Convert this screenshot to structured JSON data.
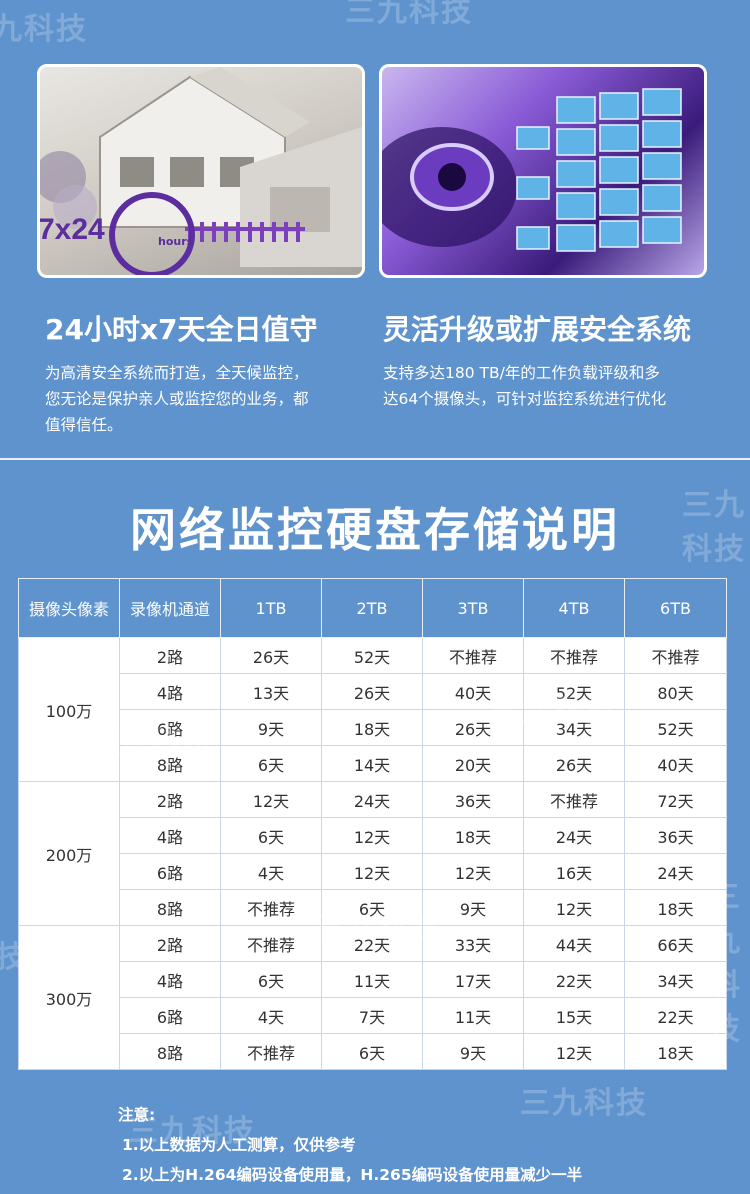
{
  "features": [
    {
      "title": "24小时x7天全日值守",
      "desc_lines": [
        "为高清安全系统而打造，全天候监控，",
        "您无论是保护亲人或监控您的业务，都",
        "值得信任。"
      ],
      "badge_text": "7x24",
      "badge_sub": "hours"
    },
    {
      "title": "灵活升级或扩展安全系统",
      "desc_lines": [
        "支持多达180 TB/年的工作负载评级和多",
        "达64个摄像头，可针对监控系统进行优化"
      ]
    }
  ],
  "main_title": "网络监控硬盘存储说明",
  "table": {
    "headers": [
      "摄像头像素",
      "录像机通道",
      "1TB",
      "2TB",
      "3TB",
      "4TB",
      "6TB"
    ],
    "groups": [
      {
        "pixel": "100万",
        "rows": [
          {
            "channel": "2路",
            "values": [
              "26天",
              "52天",
              "不推荐",
              "不推荐",
              "不推荐"
            ]
          },
          {
            "channel": "4路",
            "values": [
              "13天",
              "26天",
              "40天",
              "52天",
              "80天"
            ]
          },
          {
            "channel": "6路",
            "values": [
              "9天",
              "18天",
              "26天",
              "34天",
              "52天"
            ]
          },
          {
            "channel": "8路",
            "values": [
              "6天",
              "14天",
              "20天",
              "26天",
              "40天"
            ]
          }
        ]
      },
      {
        "pixel": "200万",
        "rows": [
          {
            "channel": "2路",
            "values": [
              "12天",
              "24天",
              "36天",
              "不推荐",
              "72天"
            ]
          },
          {
            "channel": "4路",
            "values": [
              "6天",
              "12天",
              "18天",
              "24天",
              "36天"
            ]
          },
          {
            "channel": "6路",
            "values": [
              "4天",
              "12天",
              "12天",
              "16天",
              "24天"
            ]
          },
          {
            "channel": "8路",
            "values": [
              "不推荐",
              "6天",
              "9天",
              "12天",
              "18天"
            ]
          }
        ]
      },
      {
        "pixel": "300万",
        "rows": [
          {
            "channel": "2路",
            "values": [
              "不推荐",
              "22天",
              "33天",
              "44天",
              "66天"
            ]
          },
          {
            "channel": "4路",
            "values": [
              "6天",
              "11天",
              "17天",
              "22天",
              "34天"
            ]
          },
          {
            "channel": "6路",
            "values": [
              "4天",
              "7天",
              "11天",
              "15天",
              "22天"
            ]
          },
          {
            "channel": "8路",
            "values": [
              "不推荐",
              "6天",
              "9天",
              "12天",
              "18天"
            ]
          }
        ]
      }
    ]
  },
  "notes": {
    "label": "注意:",
    "items": [
      "1.以上数据为人工测算，仅供参考",
      "2.以上为H.264编码设备使用量，H.265编码设备使用量减少一半"
    ]
  },
  "watermark": "三九科技"
}
